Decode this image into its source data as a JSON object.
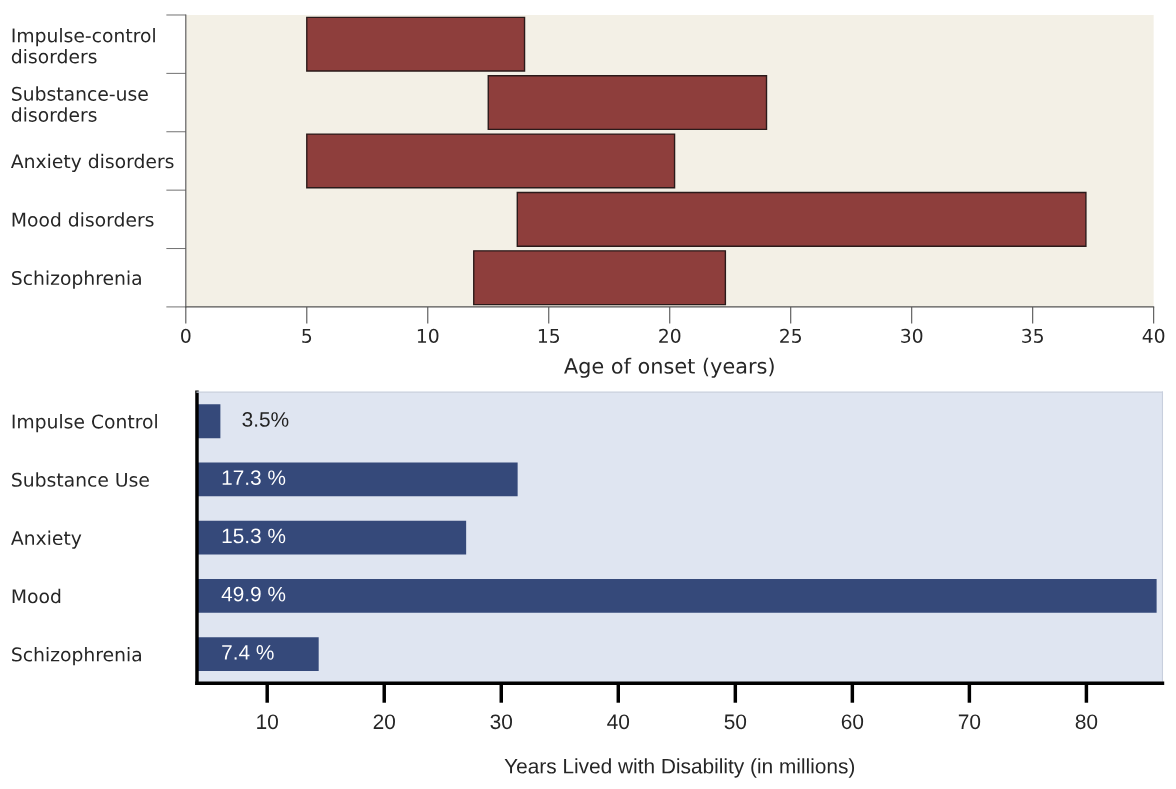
{
  "chart_data": [
    {
      "type": "bar",
      "orientation": "horizontal",
      "xlabel": "Age of onset (years)",
      "categories": [
        "Impulse-control\ndisorders",
        "Substance-use\ndisorders",
        "Anxiety disorders",
        "Mood disorders",
        "Schizophrenia"
      ],
      "base": [
        5,
        12.5,
        5,
        13.7,
        11.9
      ],
      "values": [
        9,
        11.5,
        15.2,
        23.5,
        10.4
      ],
      "color": "#8e3e3c",
      "xlim": [
        0,
        40
      ],
      "xticks": [
        0,
        5,
        10,
        15,
        20,
        25,
        30,
        35,
        40
      ]
    },
    {
      "type": "bar",
      "orientation": "horizontal",
      "xlabel": "Years Lived with Disability (in millions)",
      "categories": [
        "Impulse Control",
        "Substance Use",
        "Anxiety",
        "Mood",
        "Schizophrenia"
      ],
      "values": [
        6,
        31.4,
        27,
        86,
        14.4
      ],
      "annotations": [
        "3.5%",
        "17.3 %",
        "15.3 %",
        "49.9 %",
        "7.4 %"
      ],
      "color": "#35497a",
      "xlim": [
        4,
        86.5
      ],
      "xticks": [
        10,
        20,
        30,
        40,
        50,
        60,
        70,
        80
      ]
    }
  ]
}
